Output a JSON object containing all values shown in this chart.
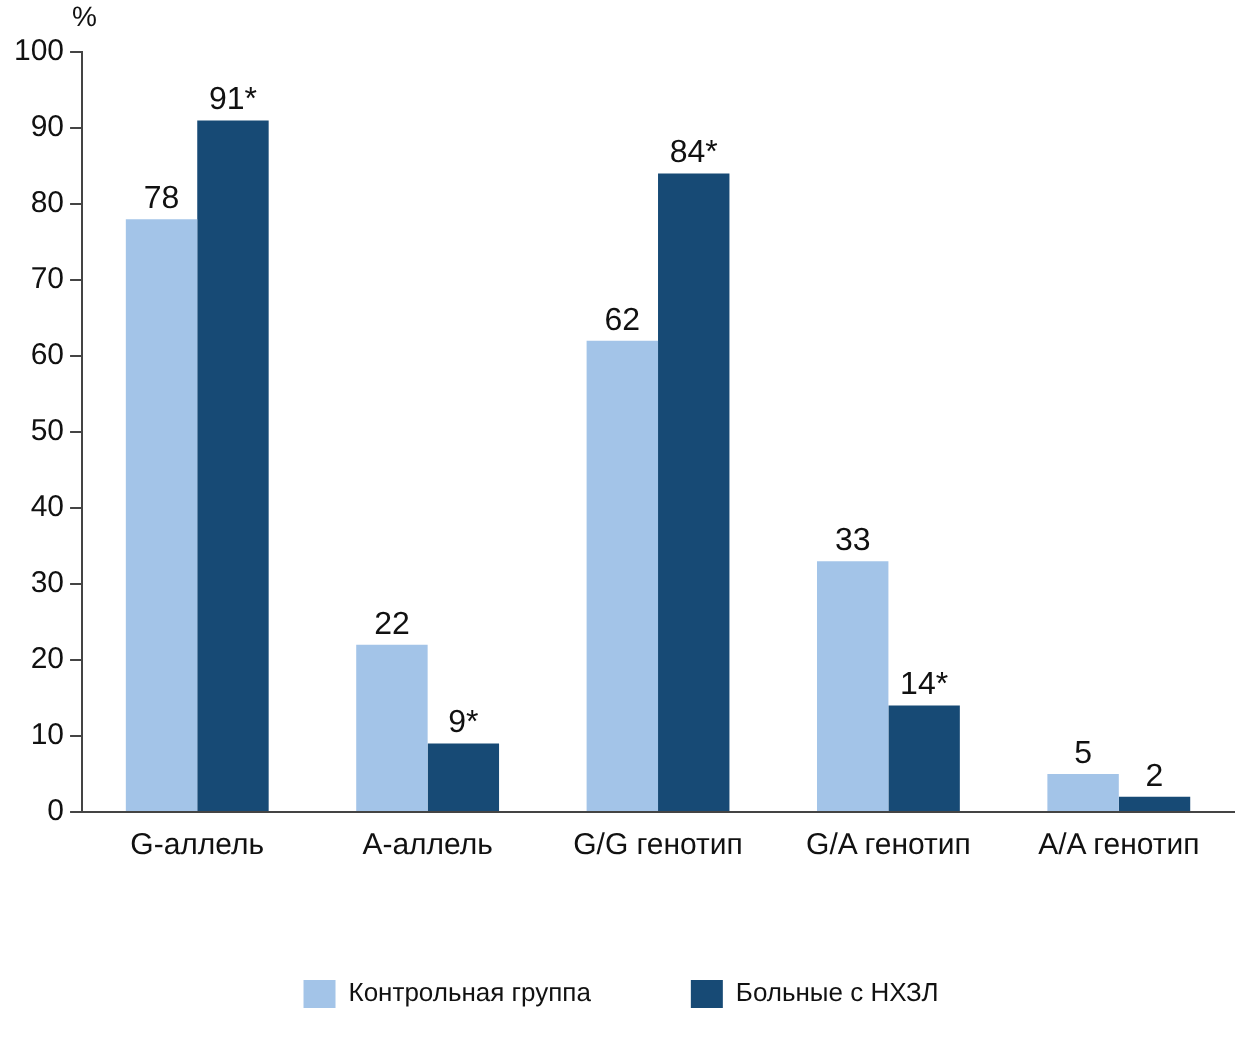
{
  "chart_data": {
    "type": "bar",
    "ylabel": "%",
    "categories": [
      "G-аллель",
      "A-аллель",
      "G/G генотип",
      "G/A генотип",
      "A/A генотип"
    ],
    "series": [
      {
        "name": "Контрольная группа",
        "color": "#a3c4e8",
        "values": [
          78,
          22,
          62,
          33,
          5
        ],
        "value_labels": [
          "78",
          "22",
          "62",
          "33",
          "5"
        ]
      },
      {
        "name": "Больные с НХЗЛ",
        "color": "#174a75",
        "values": [
          91,
          9,
          84,
          14,
          2
        ],
        "value_labels": [
          "91*",
          "9*",
          "84*",
          "14*",
          "2"
        ]
      }
    ],
    "ylim": [
      0,
      100
    ],
    "yticks": [
      0,
      10,
      20,
      30,
      40,
      50,
      60,
      70,
      80,
      90,
      100
    ],
    "grid": false,
    "legend": "bottom"
  }
}
